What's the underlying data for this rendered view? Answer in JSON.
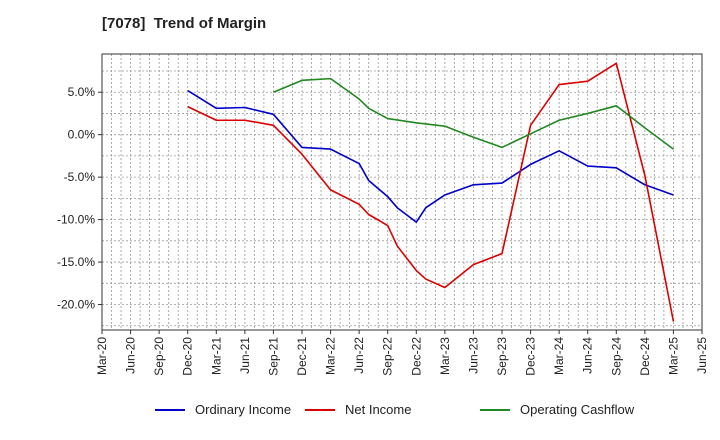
{
  "chart_data": {
    "type": "line",
    "title": "[7078]  Trend of Margin",
    "xlabel": "",
    "ylabel": "",
    "x_ticks": [
      "Mar-20",
      "Jun-20",
      "Sep-20",
      "Dec-20",
      "Mar-21",
      "Jun-21",
      "Sep-21",
      "Dec-21",
      "Mar-22",
      "Jun-22",
      "Sep-22",
      "Dec-22",
      "Mar-23",
      "Jun-23",
      "Sep-23",
      "Dec-23",
      "Mar-24",
      "Jun-24",
      "Sep-24",
      "Dec-24",
      "Mar-25",
      "Jun-25"
    ],
    "y_ticks": [
      5,
      0,
      -5,
      -10,
      -15,
      -20
    ],
    "y_tick_labels": [
      "5.0%",
      "0.0%",
      "-5.0%",
      "-10.0%",
      "-15.0%",
      "-20.0%"
    ],
    "ylim": [
      -23,
      9.5
    ],
    "grid": true,
    "legend_position": "bottom",
    "series": [
      {
        "name": "Ordinary Income",
        "color": "#0000cc",
        "points": [
          [
            "Dec-20",
            5.2
          ],
          [
            "Mar-21",
            3.1
          ],
          [
            "Jun-21",
            3.2
          ],
          [
            "Sep-21",
            2.4
          ],
          [
            "Dec-21",
            -1.5
          ],
          [
            "Mar-22",
            -1.7
          ],
          [
            "Jun-22",
            -3.4
          ],
          [
            "Jul-22",
            -5.4
          ],
          [
            "Sep-22",
            -7.3
          ],
          [
            "Oct-22",
            -8.6
          ],
          [
            "Dec-22",
            -10.3
          ],
          [
            "Jan-23",
            -8.6
          ],
          [
            "Mar-23",
            -7.1
          ],
          [
            "Jun-23",
            -5.9
          ],
          [
            "Sep-23",
            -5.7
          ],
          [
            "Dec-23",
            -3.5
          ],
          [
            "Mar-24",
            -1.9
          ],
          [
            "Jun-24",
            -3.7
          ],
          [
            "Sep-24",
            -3.9
          ],
          [
            "Dec-24",
            -5.9
          ],
          [
            "Mar-25",
            -7.1
          ]
        ]
      },
      {
        "name": "Net Income",
        "color": "#dd0000",
        "points": [
          [
            "Dec-20",
            3.3
          ],
          [
            "Mar-21",
            1.7
          ],
          [
            "Jun-21",
            1.7
          ],
          [
            "Sep-21",
            1.1
          ],
          [
            "Dec-21",
            -2.3
          ],
          [
            "Mar-22",
            -6.5
          ],
          [
            "Jun-22",
            -8.2
          ],
          [
            "Jul-22",
            -9.4
          ],
          [
            "Sep-22",
            -10.7
          ],
          [
            "Oct-22",
            -13.1
          ],
          [
            "Dec-22",
            -16.0
          ],
          [
            "Jan-23",
            -17.0
          ],
          [
            "Mar-23",
            -18.0
          ],
          [
            "Jun-23",
            -15.3
          ],
          [
            "Sep-23",
            -14.0
          ],
          [
            "Dec-23",
            1.1
          ],
          [
            "Mar-24",
            5.9
          ],
          [
            "Jun-24",
            6.3
          ],
          [
            "Sep-24",
            8.4
          ],
          [
            "Dec-24",
            -4.8
          ],
          [
            "Mar-25",
            -22.0
          ]
        ]
      },
      {
        "name": "Operating Cashflow",
        "color": "#228822",
        "points": [
          [
            "Sep-21",
            5.0
          ],
          [
            "Dec-21",
            6.4
          ],
          [
            "Mar-22",
            6.6
          ],
          [
            "Jun-22",
            4.2
          ],
          [
            "Jul-22",
            3.1
          ],
          [
            "Sep-22",
            1.9
          ],
          [
            "Dec-22",
            1.4
          ],
          [
            "Mar-23",
            1.0
          ],
          [
            "Jun-23",
            -0.3
          ],
          [
            "Sep-23",
            -1.5
          ],
          [
            "Dec-23",
            0.1
          ],
          [
            "Mar-24",
            1.7
          ],
          [
            "Jun-24",
            2.5
          ],
          [
            "Sep-24",
            3.4
          ],
          [
            "Dec-24",
            0.8
          ],
          [
            "Mar-25",
            -1.7
          ]
        ]
      }
    ]
  }
}
